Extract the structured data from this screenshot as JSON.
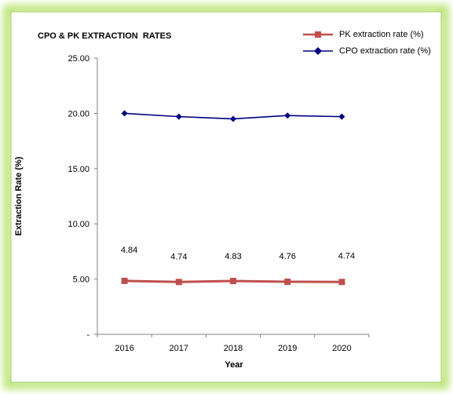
{
  "chart_data": {
    "type": "line",
    "title": "CPO & PK EXTRACTION  RATES",
    "xlabel": "Year",
    "ylabel": "Extraction Rate (%)",
    "categories": [
      "2016",
      "2017",
      "2018",
      "2019",
      "2020"
    ],
    "ylim": [
      0,
      25
    ],
    "yticks": [
      "-",
      "5.00",
      "10.00",
      "15.00",
      "20.00",
      "25.00"
    ],
    "ytick_values": [
      0,
      5,
      10,
      15,
      20,
      25
    ],
    "grid": false,
    "legend": "top-right",
    "series": [
      {
        "name": "PK extraction rate (%)",
        "values": [
          4.84,
          4.74,
          4.83,
          4.76,
          4.74
        ],
        "data_labels": [
          "4.84",
          "4.74",
          "4.83",
          "4.76",
          "4.74"
        ],
        "color": "#c0504d",
        "marker": "square"
      },
      {
        "name": "CPO extraction rate (%)",
        "values": [
          20.0,
          19.7,
          19.5,
          19.8,
          19.7
        ],
        "color": "#000080",
        "marker": "diamond"
      }
    ]
  },
  "colors": {
    "frame_glow": "#c6ef8e",
    "axis": "#808080"
  }
}
